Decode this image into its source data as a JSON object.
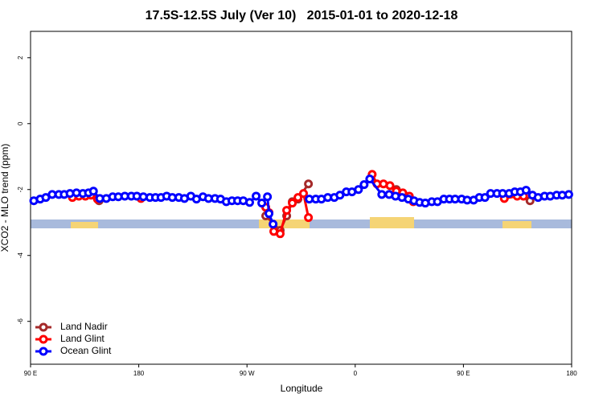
{
  "chart_data": {
    "type": "line",
    "title": "17.5S-12.5S July (Ver 10)   2015-01-01 to 2020-12-18",
    "xlabel": "Longitude",
    "ylabel": "XCO2 - MLO trend (ppm)",
    "xlim": [
      90,
      540
    ],
    "ylim": [
      -7.3,
      2.8
    ],
    "xticks": [
      {
        "value": 90,
        "label": "90 E"
      },
      {
        "value": 180,
        "label": "180"
      },
      {
        "value": 270,
        "label": "90 W"
      },
      {
        "value": 360,
        "label": "0"
      },
      {
        "value": 450,
        "label": "90 E"
      },
      {
        "value": 540,
        "label": "180"
      }
    ],
    "yticks": [
      -6,
      -4,
      -2,
      0,
      2
    ],
    "legend": "bottom-left",
    "series": [
      {
        "name": "Land Nadir",
        "color": "#a52a2a",
        "x": [
          147,
          150,
          285.6,
          297.6,
          303,
          307.7,
          312.4,
          321.1,
          350,
          394.2,
          450,
          505.4
        ],
        "values": [
          -2.34,
          null,
          -2.8,
          -3.24,
          -2.8,
          -2.37,
          -2.29,
          -1.83,
          null,
          -2.0,
          null,
          -2.34
        ]
      },
      {
        "name": "Land Glint",
        "color": "#ff0000",
        "x": [
          124.8,
          130.2,
          135.6,
          140.3,
          145.6,
          160,
          181.8,
          200,
          285.6,
          288.3,
          292.3,
          297.6,
          303,
          307.7,
          312.4,
          317,
          321.1,
          340,
          374.1,
          378.1,
          383.5,
          388.9,
          394.2,
          399.6,
          405,
          408.3,
          450,
          484,
          494.7,
          500
        ],
        "values": [
          -2.24,
          -2.2,
          -2.2,
          -2.17,
          -2.29,
          null,
          -2.27,
          null,
          -2.54,
          -2.7,
          -3.27,
          -3.34,
          -2.63,
          -2.41,
          -2.24,
          -2.12,
          -2.85,
          null,
          -1.54,
          -1.83,
          -1.83,
          -1.88,
          -2.05,
          -2.1,
          -2.2,
          -2.37,
          null,
          -2.27,
          -2.2,
          -2.2
        ]
      },
      {
        "name": "Ocean Glint",
        "color": "#0000ff",
        "x": [
          92.7,
          98,
          102.7,
          108,
          113.5,
          118,
          122.8,
          128.2,
          133.5,
          138.2,
          142.3,
          147.6,
          153,
          158.3,
          163,
          168.4,
          173.8,
          178.4,
          183.8,
          189.2,
          193.9,
          198.5,
          203.2,
          207.9,
          213.3,
          218,
          223.3,
          228,
          233.4,
          238,
          243.4,
          248,
          252.8,
          257.5,
          262.2,
          266.9,
          272.2,
          277.6,
          282.3,
          287,
          288.3,
          291.7,
          305,
          321.8,
          327.2,
          331.9,
          337.2,
          342.6,
          347.3,
          352.6,
          357.3,
          362.7,
          367.4,
          372.1,
          382.1,
          388.2,
          393.5,
          398.9,
          404.2,
          408.9,
          413.6,
          418.3,
          423.7,
          428.4,
          433.7,
          438.4,
          443.1,
          448.5,
          453.1,
          458.5,
          463.2,
          467.9,
          472.6,
          477.9,
          482.6,
          488,
          492.7,
          497.4,
          502.1,
          507.4,
          512.1,
          517.5,
          522.2,
          527.5,
          532.2,
          537.6
        ],
        "values": [
          -2.34,
          -2.29,
          -2.24,
          -2.15,
          -2.15,
          -2.15,
          -2.12,
          -2.1,
          -2.12,
          -2.1,
          -2.05,
          -2.27,
          -2.27,
          -2.22,
          -2.22,
          -2.2,
          -2.2,
          -2.2,
          -2.22,
          -2.24,
          -2.24,
          -2.24,
          -2.2,
          -2.24,
          -2.24,
          -2.27,
          -2.2,
          -2.29,
          -2.22,
          -2.27,
          -2.27,
          -2.29,
          -2.37,
          -2.34,
          -2.34,
          -2.34,
          -2.39,
          -2.2,
          -2.41,
          -2.22,
          -2.73,
          -3.05,
          null,
          -2.29,
          -2.29,
          -2.29,
          -2.24,
          -2.24,
          -2.17,
          -2.07,
          -2.07,
          -2.0,
          -1.85,
          -1.68,
          -2.15,
          -2.15,
          -2.2,
          -2.24,
          -2.29,
          -2.34,
          -2.39,
          -2.41,
          -2.37,
          -2.37,
          -2.29,
          -2.29,
          -2.29,
          -2.29,
          -2.32,
          -2.32,
          -2.24,
          -2.24,
          -2.12,
          -2.12,
          -2.12,
          -2.12,
          -2.07,
          -2.07,
          -2.02,
          -2.17,
          -2.24,
          -2.2,
          -2.2,
          -2.17,
          -2.17,
          -2.15
        ]
      }
    ]
  }
}
